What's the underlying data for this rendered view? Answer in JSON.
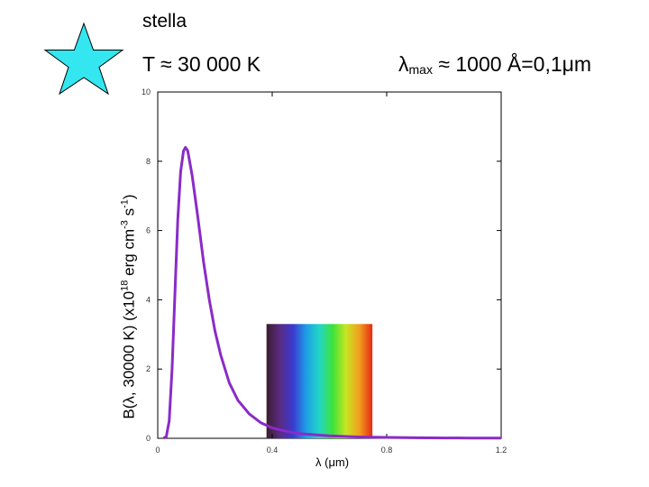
{
  "header": {
    "title": "stella",
    "temperature_text": "T ≈ 30 000 K",
    "lambda_max_symbol": "λ",
    "lambda_max_sub": "max",
    "lambda_max_value": " ≈ 1000 Å=0,1μm"
  },
  "star": {
    "icon": "star-icon",
    "color": "#33e6ef",
    "stroke": "#000000"
  },
  "chart_data": {
    "type": "line",
    "xlabel": "λ (μm)",
    "ylabel_parts": {
      "a": "B(λ, 30000 K) (x10",
      "exp1": "18",
      "b": " erg cm",
      "exp2": "-3",
      "c": " s",
      "exp3": "-1",
      "d": ")"
    },
    "xlim": [
      0,
      1.2
    ],
    "ylim": [
      0,
      10
    ],
    "x_ticks": [
      {
        "value": 0,
        "label": "0"
      },
      {
        "value": 0.4,
        "label": "0.4"
      },
      {
        "value": 0.8,
        "label": "0.8"
      },
      {
        "value": 1.2,
        "label": "1.2"
      }
    ],
    "y_ticks": [
      {
        "value": 0,
        "label": "0"
      },
      {
        "value": 2,
        "label": "2"
      },
      {
        "value": 4,
        "label": "4"
      },
      {
        "value": 6,
        "label": "6"
      },
      {
        "value": 8,
        "label": "8"
      },
      {
        "value": 10,
        "label": "10"
      }
    ],
    "series": [
      {
        "color": "#8a2bc8",
        "x": [
          0.02,
          0.03,
          0.04,
          0.05,
          0.06,
          0.07,
          0.08,
          0.09,
          0.097,
          0.105,
          0.12,
          0.14,
          0.16,
          0.18,
          0.2,
          0.22,
          0.25,
          0.28,
          0.32,
          0.36,
          0.4,
          0.45,
          0.5,
          0.6,
          0.7,
          0.8,
          0.9,
          1.0,
          1.1,
          1.2
        ],
        "y": [
          0.0,
          0.05,
          0.5,
          2.0,
          4.2,
          6.3,
          7.7,
          8.3,
          8.4,
          8.3,
          7.6,
          6.4,
          5.1,
          4.0,
          3.1,
          2.4,
          1.6,
          1.1,
          0.7,
          0.45,
          0.3,
          0.2,
          0.13,
          0.07,
          0.04,
          0.025,
          0.016,
          0.011,
          0.008,
          0.006
        ]
      }
    ],
    "visible_spectrum_band": {
      "x_start": 0.38,
      "x_end": 0.75,
      "y_top": 3.3,
      "colors": [
        "#3a1e2e",
        "#5a2a82",
        "#3a3ad0",
        "#1e9ee6",
        "#22d6c6",
        "#3ee23a",
        "#c6e622",
        "#f2a01e",
        "#e62a14"
      ]
    },
    "grid": false
  }
}
